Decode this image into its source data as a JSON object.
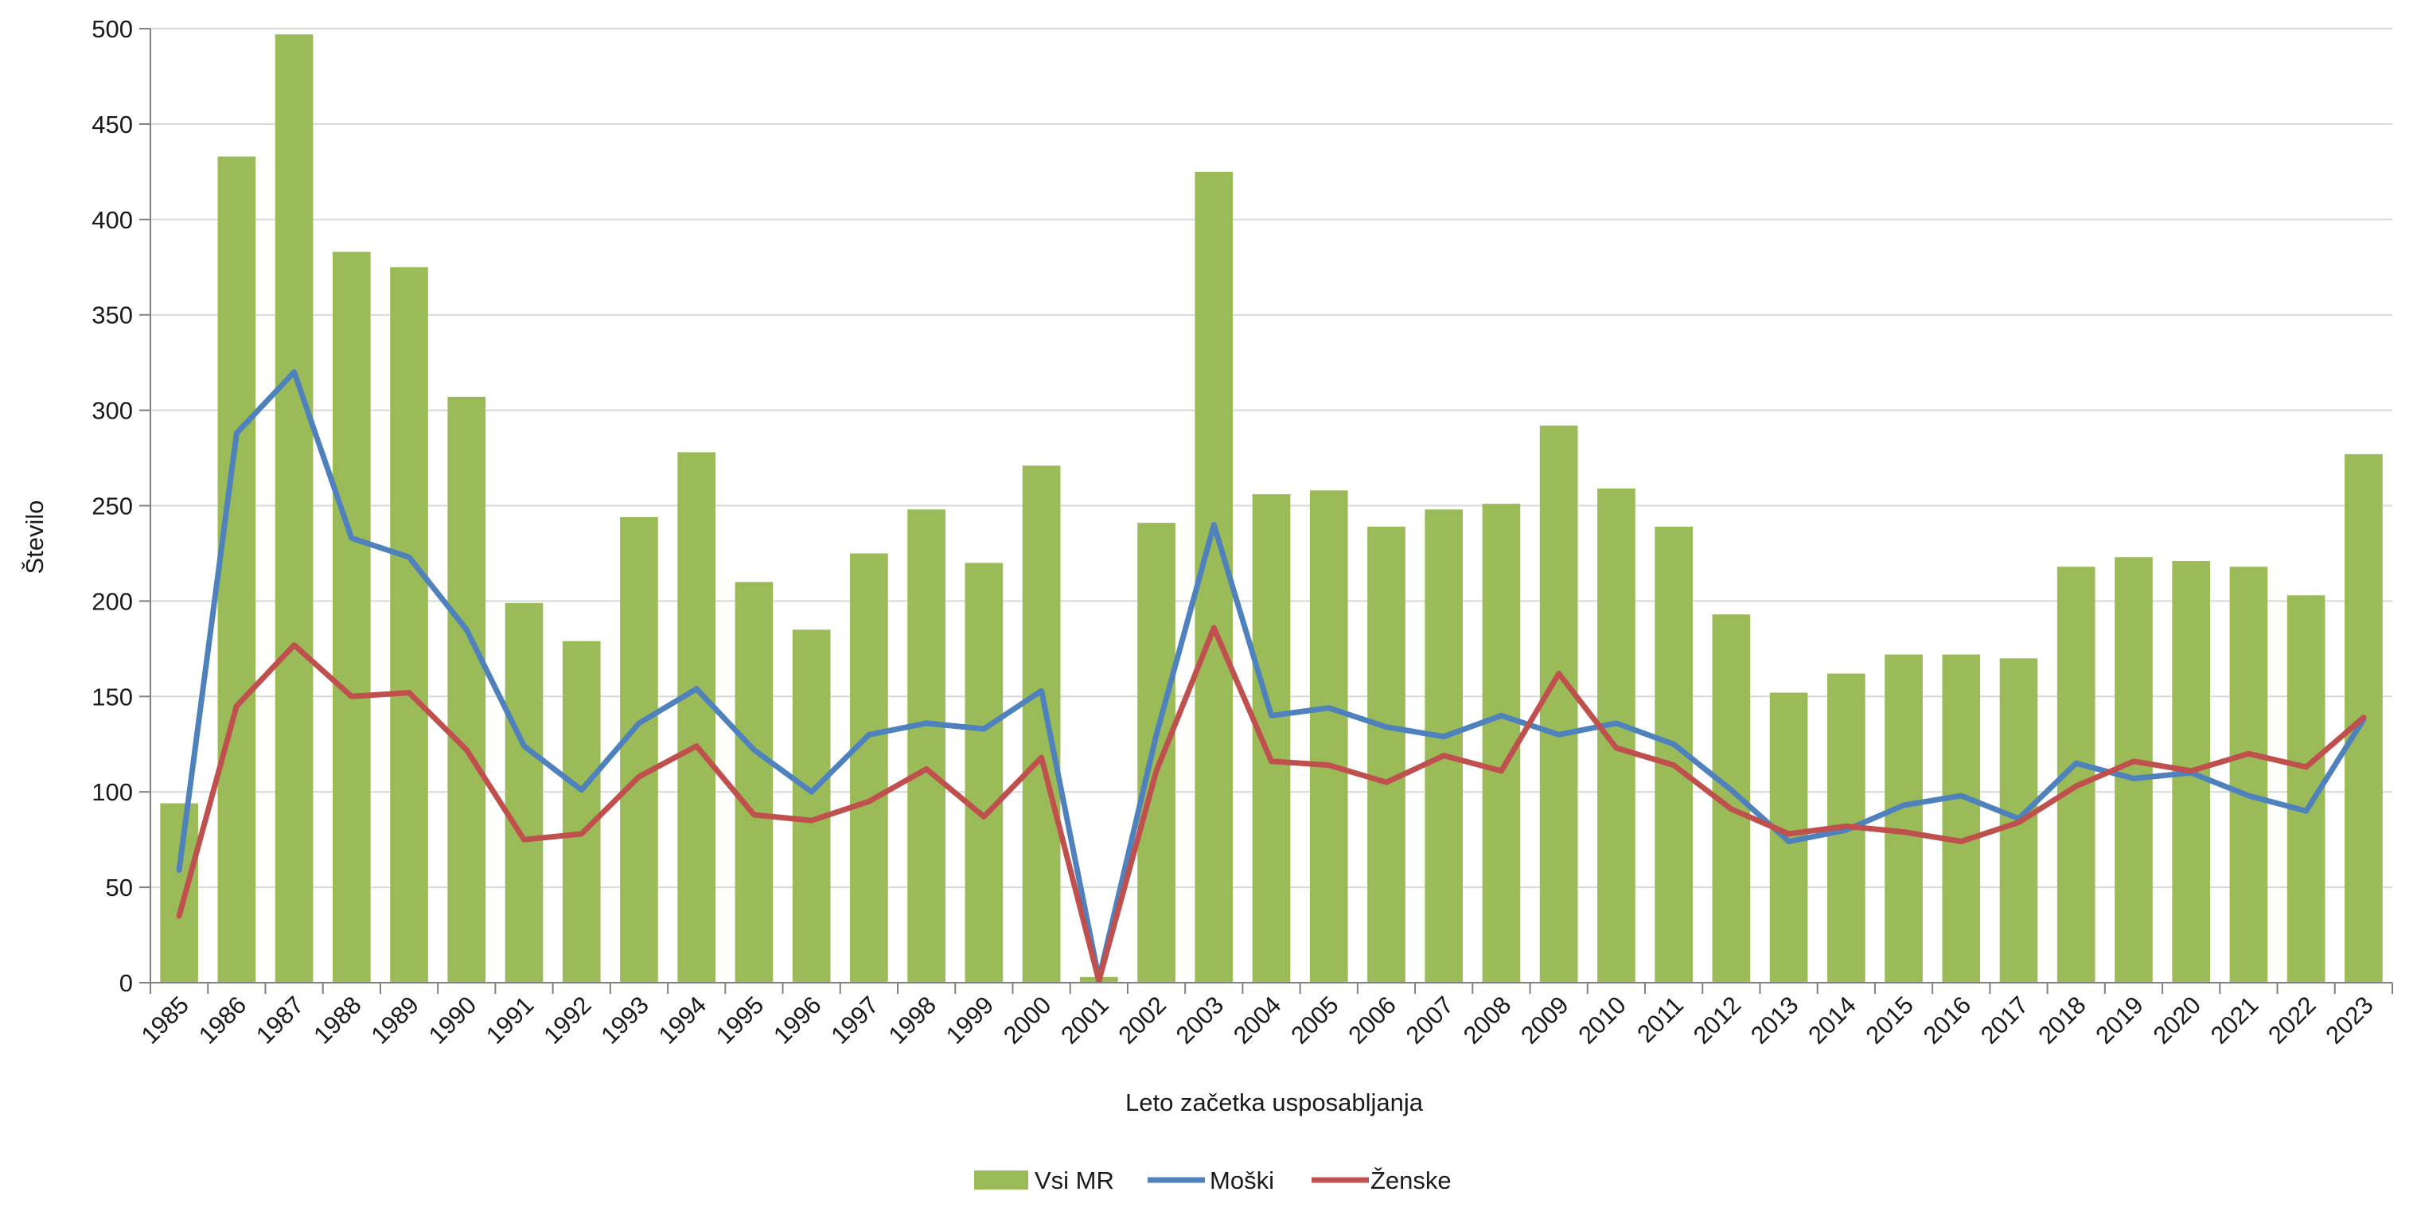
{
  "chart_data": {
    "type": "bar",
    "categories": [
      "1985",
      "1986",
      "1987",
      "1988",
      "1989",
      "1990",
      "1991",
      "1992",
      "1993",
      "1994",
      "1995",
      "1996",
      "1997",
      "1998",
      "1999",
      "2000",
      "2001",
      "2002",
      "2003",
      "2004",
      "2005",
      "2006",
      "2007",
      "2008",
      "2009",
      "2010",
      "2011",
      "2012",
      "2013",
      "2014",
      "2015",
      "2016",
      "2017",
      "2018",
      "2019",
      "2020",
      "2021",
      "2022",
      "2023"
    ],
    "series": [
      {
        "name": "Vsi MR",
        "kind": "bar",
        "color": "#9bbb59",
        "values": [
          94,
          433,
          497,
          383,
          375,
          307,
          199,
          179,
          244,
          278,
          210,
          185,
          225,
          248,
          220,
          271,
          3,
          241,
          425,
          256,
          258,
          239,
          248,
          251,
          292,
          259,
          239,
          193,
          152,
          162,
          172,
          172,
          170,
          218,
          223,
          221,
          218,
          203,
          277
        ]
      },
      {
        "name": "Moški",
        "kind": "line",
        "color": "#4f81bd",
        "values": [
          59,
          288,
          320,
          233,
          223,
          185,
          124,
          101,
          136,
          154,
          122,
          100,
          130,
          136,
          133,
          153,
          2,
          130,
          240,
          140,
          144,
          134,
          129,
          140,
          130,
          136,
          125,
          101,
          74,
          80,
          93,
          98,
          86,
          115,
          107,
          110,
          98,
          90,
          138
        ]
      },
      {
        "name": "Ženske",
        "kind": "line",
        "color": "#c0504d",
        "values": [
          35,
          145,
          177,
          150,
          152,
          122,
          75,
          78,
          108,
          124,
          88,
          85,
          95,
          112,
          87,
          118,
          1,
          111,
          186,
          116,
          114,
          105,
          119,
          111,
          162,
          123,
          114,
          91,
          78,
          82,
          79,
          74,
          84,
          103,
          116,
          111,
          120,
          113,
          139
        ]
      }
    ],
    "xlabel": "Leto začetka usposabljanja",
    "ylabel": "Število",
    "ylim": [
      0,
      500
    ],
    "yticks": [
      "0",
      "50",
      "100",
      "150",
      "200",
      "250",
      "300",
      "350",
      "400",
      "450",
      "500"
    ],
    "grid": true,
    "legend_position": "bottom"
  }
}
